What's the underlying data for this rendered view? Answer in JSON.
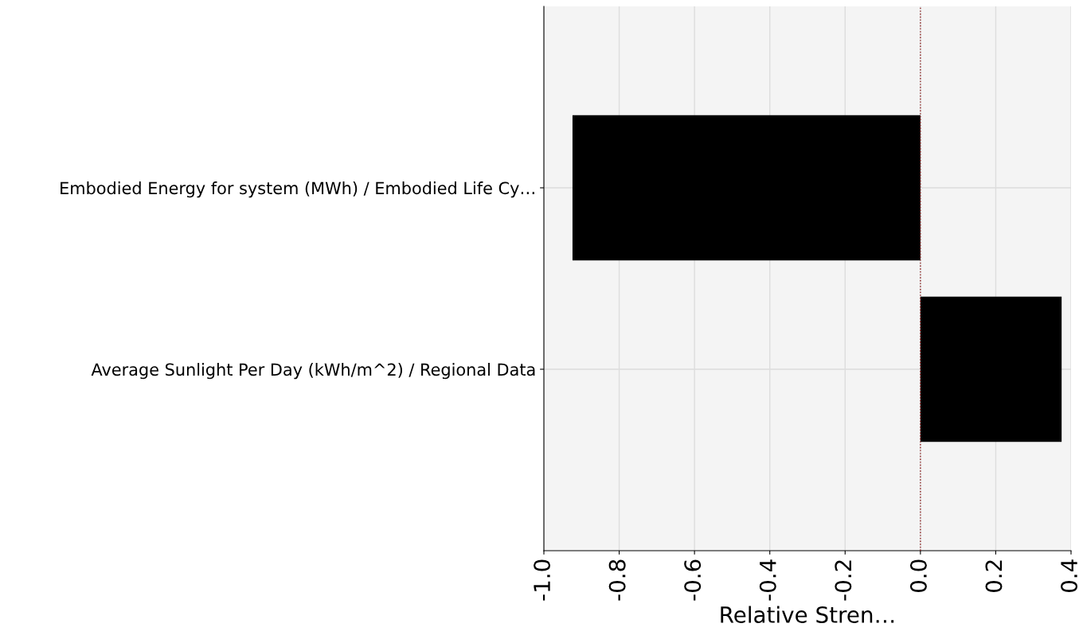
{
  "chart_data": {
    "type": "bar",
    "orientation": "horizontal",
    "xlabel": "Relative Stren…",
    "categories": [
      "Embodied Energy for system (MWh) / Embodied Life Cy…",
      "Average Sunlight Per Day (kWh/m^2) / Regional Data"
    ],
    "values": [
      -0.924,
      0.375
    ],
    "color": "#000000",
    "xlim": [
      -1.0,
      0.4
    ],
    "xticks": [
      {
        "value": -1.0,
        "label": "-1.0"
      },
      {
        "value": -0.8,
        "label": "-0.8"
      },
      {
        "value": -0.6,
        "label": "-0.6"
      },
      {
        "value": -0.4,
        "label": "-0.4"
      },
      {
        "value": -0.2,
        "label": "-0.2"
      },
      {
        "value": 0.0,
        "label": "0.0"
      },
      {
        "value": 0.2,
        "label": "0.2"
      },
      {
        "value": 0.4,
        "label": "0.4"
      }
    ],
    "ref_lines": [
      {
        "axis": "x",
        "value": 0,
        "color": "#8b1a1a",
        "line_style": "dotted"
      }
    ],
    "grid": true
  }
}
